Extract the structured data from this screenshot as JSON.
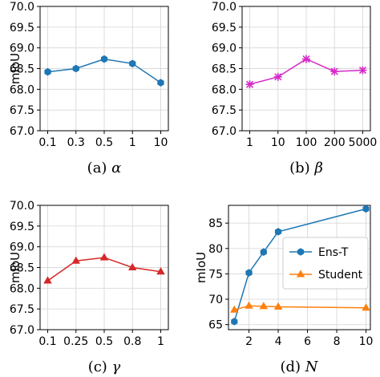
{
  "chart_data": [
    {
      "type": "line",
      "caption": "(a)",
      "caption_var": "α",
      "ylabel": "mIoU",
      "xlabel": "",
      "categories": [
        "0.1",
        "0.3",
        "0.5",
        "1",
        "10"
      ],
      "ylim": [
        67.0,
        70.0
      ],
      "yticks": [
        "70.0",
        "69.5",
        "69.0",
        "68.5",
        "68.0",
        "67.5",
        "67.0"
      ],
      "grid": true,
      "series": [
        {
          "values": [
            68.42,
            68.5,
            68.73,
            68.62,
            68.16
          ],
          "color": "#1f77b4",
          "marker": "hex"
        }
      ]
    },
    {
      "type": "line",
      "caption": "(b)",
      "caption_var": "β",
      "ylabel": "",
      "xlabel": "",
      "categories": [
        "1",
        "10",
        "100",
        "200",
        "5000"
      ],
      "ylim": [
        67.0,
        70.0
      ],
      "yticks": [
        "70.0",
        "69.5",
        "69.0",
        "68.5",
        "68.0",
        "67.5",
        "67.0"
      ],
      "grid": true,
      "series": [
        {
          "values": [
            68.12,
            68.3,
            68.73,
            68.43,
            68.46
          ],
          "color": "#d62ac8",
          "marker": "x"
        }
      ]
    },
    {
      "type": "line",
      "caption": "(c)",
      "caption_var": "γ",
      "ylabel": "mIoU",
      "xlabel": "",
      "categories": [
        "0.1",
        "0.25",
        "0.5",
        "0.8",
        "1"
      ],
      "ylim": [
        67.0,
        70.0
      ],
      "yticks": [
        "70.0",
        "69.5",
        "69.0",
        "68.5",
        "68.0",
        "67.5",
        "67.0"
      ],
      "grid": true,
      "series": [
        {
          "values": [
            68.18,
            68.66,
            68.74,
            68.5,
            68.4
          ],
          "color": "#d62728",
          "marker": "triangle"
        }
      ]
    },
    {
      "type": "line",
      "caption": "(d)",
      "caption_var": "N",
      "ylabel": "mIoU",
      "xlabel": "",
      "x": [
        1,
        2,
        3,
        4,
        10
      ],
      "xlim": [
        0.6,
        10.3
      ],
      "xticks": [
        "2",
        "4",
        "6",
        "8",
        "10"
      ],
      "ylim": [
        64.0,
        88.5
      ],
      "yticks": [
        "85",
        "80",
        "75",
        "70",
        "65"
      ],
      "grid": true,
      "legend_position": "center-right",
      "series": [
        {
          "name": "Ens-T",
          "values": [
            65.6,
            75.2,
            79.3,
            83.3,
            87.8
          ],
          "color": "#1f77b4",
          "marker": "hex"
        },
        {
          "name": "Student",
          "values": [
            67.9,
            68.7,
            68.6,
            68.5,
            68.3
          ],
          "color": "#ff7f0e",
          "marker": "triangle"
        }
      ]
    }
  ]
}
